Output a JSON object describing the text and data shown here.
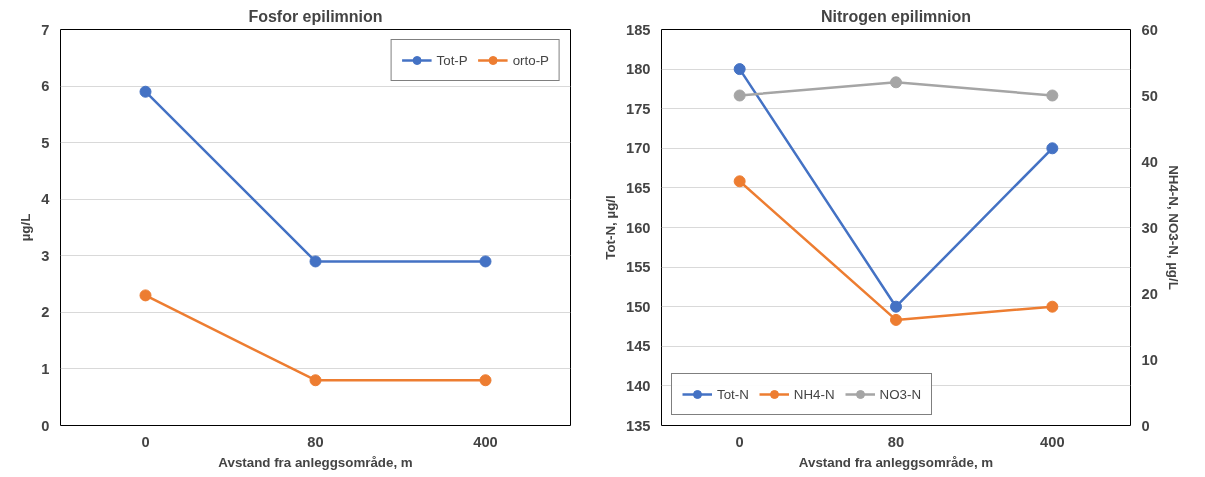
{
  "chart_data": [
    {
      "type": "line",
      "title": "Fosfor epilimnion",
      "xlabel": "Avstand fra anleggsområde, m",
      "ylabel": "µg/L",
      "categories": [
        "0",
        "80",
        "400"
      ],
      "ylim": [
        0,
        7
      ],
      "yticks": [
        0,
        1,
        2,
        3,
        4,
        5,
        6,
        7
      ],
      "grid": "y",
      "legend": "top right",
      "marker": "circle",
      "line_style": "solid",
      "series": [
        {
          "name": "Tot-P",
          "color": "#4472c4",
          "values": [
            5.9,
            2.9,
            2.9
          ]
        },
        {
          "name": "orto-P",
          "color": "#ed7d31",
          "values": [
            2.3,
            0.8,
            0.8
          ]
        }
      ]
    },
    {
      "type": "line",
      "title": "Nitrogen epilimnion",
      "xlabel": "Avstand fra anleggsområde, m",
      "ylabel": "Tot-N, µg/l",
      "y2label": "NH4-N, NO3-N, µg/L",
      "categories": [
        "0",
        "80",
        "400"
      ],
      "ylim": [
        135,
        185
      ],
      "yticks": [
        135,
        140,
        145,
        150,
        155,
        160,
        165,
        170,
        175,
        180,
        185
      ],
      "y2lim": [
        0,
        60
      ],
      "y2ticks": [
        0,
        10,
        20,
        30,
        40,
        50,
        60
      ],
      "grid": "y",
      "legend": "bottom left",
      "marker": "circle",
      "line_style": "solid",
      "series": [
        {
          "name": "Tot-N",
          "color": "#4472c4",
          "values": [
            180,
            150,
            170
          ]
        },
        {
          "name": "NH4-N",
          "color": "#ed7d31",
          "values": [
            37,
            16,
            18
          ],
          "axis": "y2"
        },
        {
          "name": "NO3-N",
          "color": "#a5a5a5",
          "values": [
            50,
            52,
            50
          ],
          "axis": "y2"
        }
      ]
    }
  ]
}
